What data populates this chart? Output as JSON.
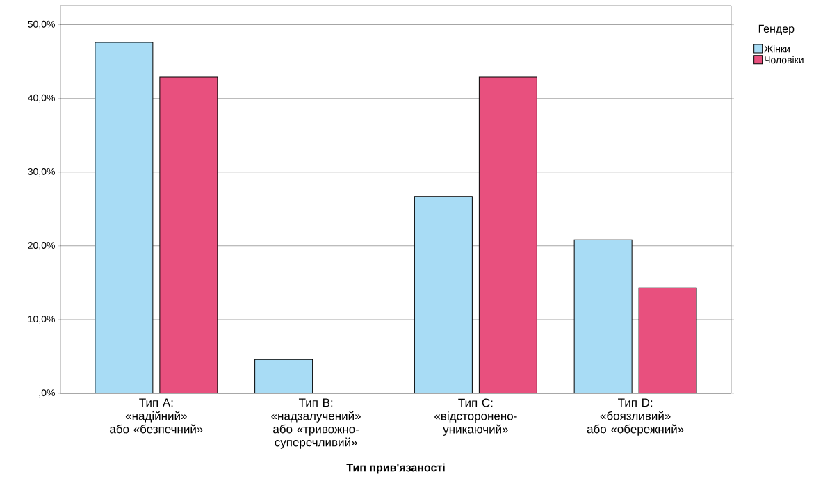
{
  "chart_data": {
    "type": "bar",
    "xlabel": "Тип прив'язаності",
    "legend_title": "Гендер",
    "legend": "top right",
    "grid": "y",
    "categories": [
      "Тип А: «надійний» або «безпечний»",
      "Тип В: «надзалучений» або «тривожно-суперечливий»",
      "Тип С: «відсторонено-уникаючий»",
      "Тип D: «боязливий» або «обережний»"
    ],
    "series": [
      {
        "name": "Жінки",
        "color": "#a8dcf5",
        "values": [
          47.6,
          4.6,
          26.7,
          20.8
        ]
      },
      {
        "name": "Чоловіки",
        "color": "#e8507e",
        "values": [
          42.9,
          0,
          42.9,
          14.3
        ]
      }
    ],
    "ylim": [
      0,
      52.6
    ],
    "yticks": [
      {
        "value": 0,
        "label": ",0%"
      },
      {
        "value": 10,
        "label": "10,0%"
      },
      {
        "value": 20,
        "label": "20,0%"
      },
      {
        "value": 30,
        "label": "30,0%"
      },
      {
        "value": 40,
        "label": "40,0%"
      },
      {
        "value": 50,
        "label": "50,0%"
      }
    ]
  }
}
